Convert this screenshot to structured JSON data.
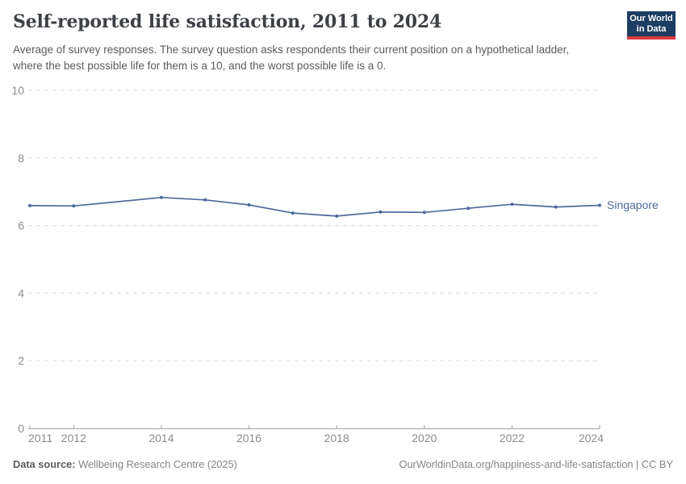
{
  "header": {
    "title": "Self-reported life satisfaction, 2011 to 2024",
    "subtitle": "Average of survey responses. The survey question asks respondents their current position on a hypothetical ladder, where the best possible life for them is a 10, and the worst possible life is a 0.",
    "logo": {
      "line1": "Our World",
      "line2": "in Data"
    }
  },
  "chart_data": {
    "type": "line",
    "title": "Self-reported life satisfaction, 2011 to 2024",
    "xlabel": "",
    "ylabel": "",
    "xlim": [
      2011,
      2024
    ],
    "ylim": [
      0,
      10
    ],
    "x_ticks": [
      2011,
      2012,
      2014,
      2016,
      2018,
      2020,
      2022,
      2024
    ],
    "y_ticks": [
      0,
      2,
      4,
      6,
      8,
      10
    ],
    "grid": "horizontal-dashed",
    "legend_position": "end-of-line-label",
    "series": [
      {
        "name": "Singapore",
        "color": "#4c6a9c",
        "x": [
          2011,
          2012,
          2014,
          2015,
          2016,
          2017,
          2018,
          2019,
          2020,
          2021,
          2022,
          2023,
          2024
        ],
        "values": [
          6.59,
          6.58,
          6.83,
          6.76,
          6.61,
          6.37,
          6.28,
          6.4,
          6.39,
          6.51,
          6.63,
          6.55,
          6.6
        ]
      }
    ]
  },
  "footer": {
    "source_label": "Data source:",
    "source_value": "Wellbeing Research Centre (2025)",
    "attribution": "OurWorldinData.org/happiness-and-life-satisfaction | CC BY"
  },
  "colors": {
    "accent_line": "#4c6a9c",
    "grid": "#dcdcdc",
    "axis": "#a3a3a3",
    "tick_label": "#8c8c8c",
    "title_text": "#3d4045",
    "subtitle_text": "#5b5b5b",
    "footer_text": "#858585",
    "logo_bg": "#1d3d63",
    "logo_stripe": "#d73a3a"
  }
}
